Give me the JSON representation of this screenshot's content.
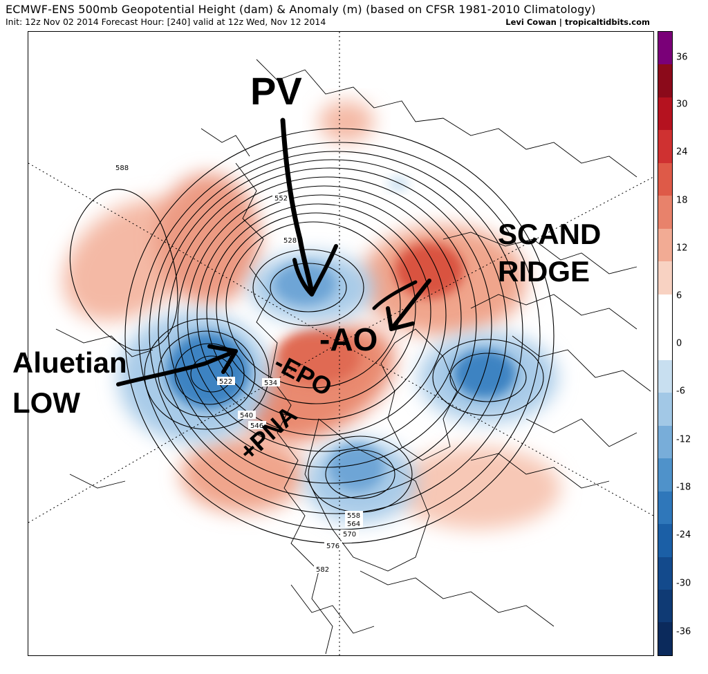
{
  "header": {
    "title": "ECMWF-ENS 500mb Geopotential Height (dam) & Anomaly (m) (based on CFSR 1981-2010 Climatology)",
    "subtitle": "Init: 12z Nov 02 2014 Forecast Hour: [240] valid at 12z Wed, Nov 12 2014",
    "credit": "Levi Cowan | tropicaltidbits.com"
  },
  "annotations": {
    "pv": "PV",
    "scand_line1": "SCAND",
    "scand_line2": "RIDGE",
    "aleutian_line1": "Aluetian",
    "aleutian_line2": "LOW",
    "ao": "-AO",
    "epo": "-EPO",
    "pna": "+PNA"
  },
  "contour_labels": [
    "588",
    "582",
    "576",
    "570",
    "564",
    "558",
    "552",
    "546",
    "540",
    "534",
    "528",
    "522"
  ],
  "colorbar": {
    "tick_labels": [
      "36",
      "30",
      "24",
      "18",
      "12",
      "6",
      "0",
      "-6",
      "-12",
      "-18",
      "-24",
      "-30",
      "-36"
    ],
    "colors": [
      "#7a0078",
      "#8b0a1a",
      "#b5121f",
      "#cf3131",
      "#de5a48",
      "#e8826b",
      "#f2ab94",
      "#f8d2c2",
      "#ffffff",
      "#ffffff",
      "#c8dff0",
      "#a2c8e6",
      "#78add9",
      "#4f92ca",
      "#2f77ba",
      "#1b5fa6",
      "#134a8c",
      "#0f3a74",
      "#0b2a5c"
    ]
  },
  "colors": {
    "positive_anomaly": "#e8826b",
    "negative_anomaly": "#4f92ca",
    "contour": "#000000"
  }
}
